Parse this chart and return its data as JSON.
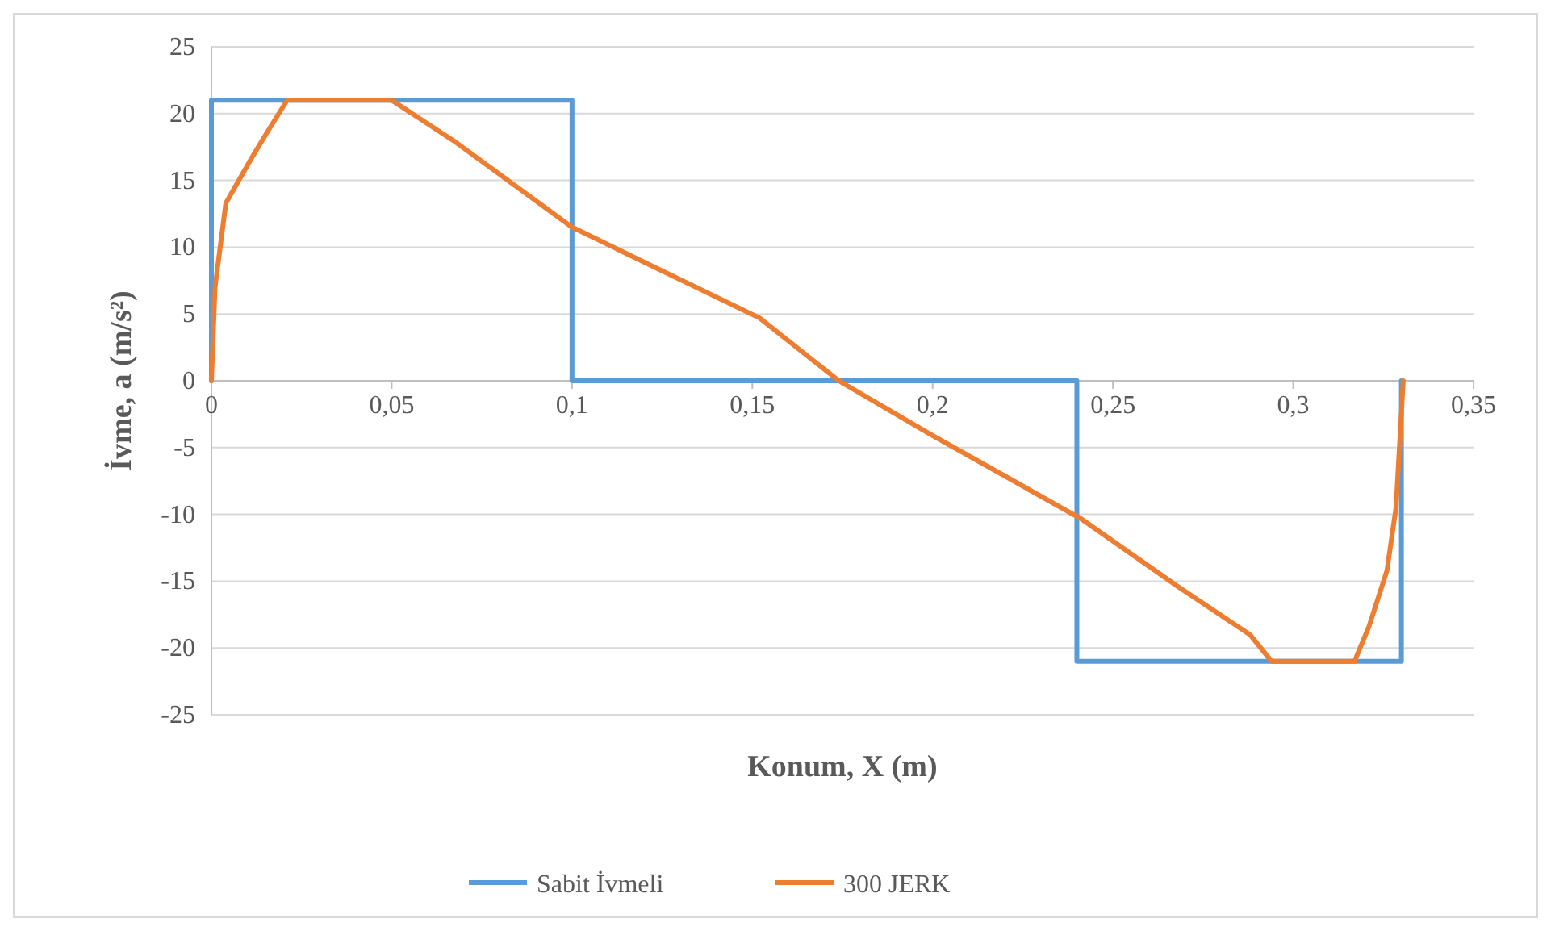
{
  "chart_data": {
    "type": "line",
    "xlabel": "Konum, X (m)",
    "ylabel": "İvme, a (m/s²)",
    "xlim": [
      0,
      0.35
    ],
    "xticks": [
      {
        "value": 0,
        "label": "0"
      },
      {
        "value": 0.05,
        "label": "0,05"
      },
      {
        "value": 0.1,
        "label": "0,1"
      },
      {
        "value": 0.15,
        "label": "0,15"
      },
      {
        "value": 0.2,
        "label": "0,2"
      },
      {
        "value": 0.25,
        "label": "0,25"
      },
      {
        "value": 0.3,
        "label": "0,3"
      },
      {
        "value": 0.35,
        "label": "0,35"
      }
    ],
    "ylim": [
      -25,
      25
    ],
    "yticks": [
      -25,
      -20,
      -15,
      -10,
      -5,
      0,
      5,
      10,
      15,
      20,
      25
    ],
    "grid": "y",
    "legend": "bottom",
    "line_style": "solid",
    "series": [
      {
        "name": "Sabit İvmeli",
        "color": "#5b9bd5",
        "x": [
          0,
          0,
          0.1,
          0.1,
          0.24,
          0.24,
          0.33,
          0.33
        ],
        "values": [
          0,
          21,
          21,
          0,
          0,
          -21,
          -21,
          0
        ]
      },
      {
        "name": "300 JERK",
        "color": "#ed7d31",
        "x": [
          0,
          0.001,
          0.004,
          0.011,
          0.015,
          0.021,
          0.05,
          0.067,
          0.1,
          0.152,
          0.174,
          0.2,
          0.241,
          0.268,
          0.288,
          0.294,
          0.317,
          0.321,
          0.326,
          0.3285,
          0.33,
          0.3305
        ],
        "values": [
          0,
          7,
          13.3,
          16.6,
          18.4,
          21,
          21,
          18,
          11.5,
          4.7,
          0,
          -4.1,
          -10.3,
          -15.4,
          -19,
          -21,
          -21,
          -18.4,
          -14.2,
          -9.5,
          -2.4,
          0
        ]
      }
    ]
  }
}
